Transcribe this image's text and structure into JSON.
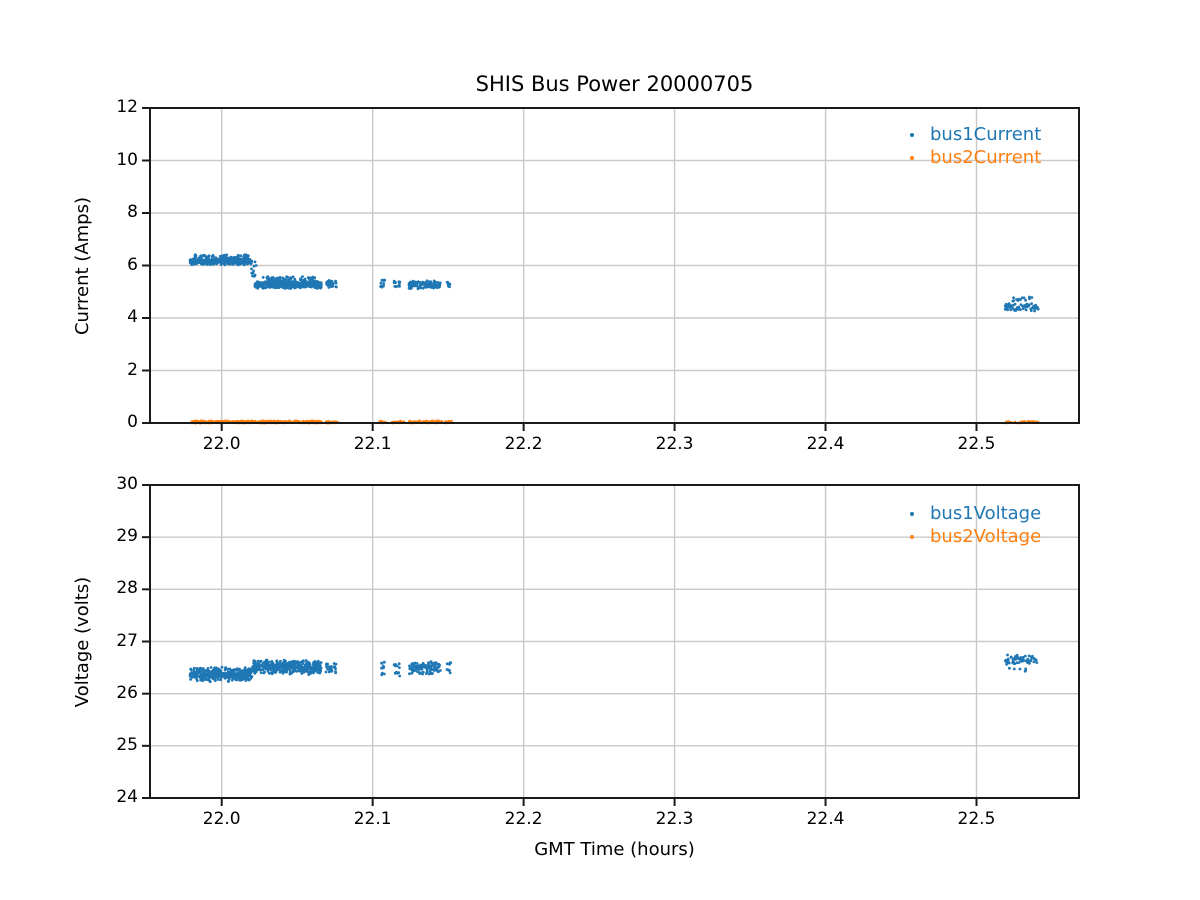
{
  "figure": {
    "background": "#ffffff"
  },
  "chart_data": [
    {
      "type": "scatter",
      "title": "SHIS Bus Power 20000705",
      "ylabel": "Current (Amps)",
      "xlabel": "",
      "xlim": [
        21.9525,
        22.5679
      ],
      "ylim": [
        0,
        12
      ],
      "xticks": [
        22.0,
        22.1,
        22.2,
        22.3,
        22.4,
        22.5
      ],
      "xticklabels": [
        "22.0",
        "22.1",
        "22.2",
        "22.3",
        "22.4",
        "22.5"
      ],
      "yticks": [
        0,
        2,
        4,
        6,
        8,
        10,
        12
      ],
      "yticklabels": [
        "0",
        "2",
        "4",
        "6",
        "8",
        "10",
        "12"
      ],
      "grid": true,
      "grid_color": "#c9c9c9",
      "legend": {
        "position": "upper right",
        "frame": false
      },
      "series": [
        {
          "name": "bus1Current",
          "color": "#1f77b4",
          "marker": "dot",
          "segments": [
            {
              "x0": 21.979,
              "x1": 22.02,
              "n": 380,
              "y0": 6.02,
              "y1": 6.28,
              "dist": "tri"
            },
            {
              "x0": 21.981,
              "x1": 22.018,
              "n": 70,
              "y0": 6.22,
              "y1": 6.42,
              "dist": "uniform"
            },
            {
              "x0": 22.019,
              "x1": 22.023,
              "n": 14,
              "y0": 5.45,
              "y1": 6.15,
              "dist": "uniform"
            },
            {
              "x0": 22.022,
              "x1": 22.066,
              "n": 400,
              "y0": 5.12,
              "y1": 5.42,
              "dist": "tri"
            },
            {
              "x0": 22.026,
              "x1": 22.064,
              "n": 70,
              "y0": 5.38,
              "y1": 5.58,
              "dist": "uniform"
            },
            {
              "x0": 22.069,
              "x1": 22.076,
              "n": 28,
              "y0": 5.14,
              "y1": 5.5,
              "dist": "tri"
            },
            {
              "x0": 22.105,
              "x1": 22.108,
              "n": 12,
              "y0": 5.15,
              "y1": 5.45,
              "dist": "uniform"
            },
            {
              "x0": 22.114,
              "x1": 22.118,
              "n": 12,
              "y0": 5.18,
              "y1": 5.45,
              "dist": "uniform"
            },
            {
              "x0": 22.124,
              "x1": 22.145,
              "n": 120,
              "y0": 5.1,
              "y1": 5.45,
              "dist": "tri"
            },
            {
              "x0": 22.149,
              "x1": 22.152,
              "n": 10,
              "y0": 5.18,
              "y1": 5.4,
              "dist": "uniform"
            },
            {
              "x0": 22.519,
              "x1": 22.541,
              "n": 70,
              "y0": 4.25,
              "y1": 4.58,
              "dist": "tri"
            },
            {
              "x0": 22.521,
              "x1": 22.538,
              "n": 13,
              "y0": 4.55,
              "y1": 4.8,
              "dist": "uniform"
            }
          ]
        },
        {
          "name": "bus2Current",
          "color": "#ff7f0e",
          "marker": "dot",
          "segments": [
            {
              "x0": 21.98,
              "x1": 22.066,
              "n": 320,
              "y0": 0.0,
              "y1": 0.08,
              "dist": "uniform"
            },
            {
              "x0": 22.069,
              "x1": 22.077,
              "n": 22,
              "y0": 0.0,
              "y1": 0.07,
              "dist": "uniform"
            },
            {
              "x0": 22.104,
              "x1": 22.109,
              "n": 10,
              "y0": 0.0,
              "y1": 0.07,
              "dist": "uniform"
            },
            {
              "x0": 22.112,
              "x1": 22.121,
              "n": 16,
              "y0": 0.0,
              "y1": 0.07,
              "dist": "uniform"
            },
            {
              "x0": 22.124,
              "x1": 22.146,
              "n": 70,
              "y0": 0.0,
              "y1": 0.08,
              "dist": "uniform"
            },
            {
              "x0": 22.148,
              "x1": 22.153,
              "n": 10,
              "y0": 0.0,
              "y1": 0.07,
              "dist": "uniform"
            },
            {
              "x0": 22.519,
              "x1": 22.541,
              "n": 30,
              "y0": 0.0,
              "y1": 0.07,
              "dist": "uniform"
            }
          ]
        }
      ]
    },
    {
      "type": "scatter",
      "title": "",
      "ylabel": "Voltage (volts)",
      "xlabel": "GMT Time (hours)",
      "xlim": [
        21.9525,
        22.5679
      ],
      "ylim": [
        24,
        30
      ],
      "xticks": [
        22.0,
        22.1,
        22.2,
        22.3,
        22.4,
        22.5
      ],
      "xticklabels": [
        "22.0",
        "22.1",
        "22.2",
        "22.3",
        "22.4",
        "22.5"
      ],
      "yticks": [
        24,
        25,
        26,
        27,
        28,
        29,
        30
      ],
      "yticklabels": [
        "24",
        "25",
        "26",
        "27",
        "28",
        "29",
        "30"
      ],
      "grid": true,
      "grid_color": "#c9c9c9",
      "legend": {
        "position": "upper right",
        "frame": false
      },
      "series": [
        {
          "name": "bus1Voltage",
          "color": "#1f77b4",
          "marker": "dot",
          "segments": [
            {
              "x0": 21.979,
              "x1": 22.02,
              "n": 380,
              "y0": 26.22,
              "y1": 26.52,
              "dist": "tri"
            },
            {
              "x0": 22.02,
              "x1": 22.066,
              "n": 400,
              "y0": 26.36,
              "y1": 26.66,
              "dist": "tri"
            },
            {
              "x0": 22.069,
              "x1": 22.076,
              "n": 26,
              "y0": 26.38,
              "y1": 26.6,
              "dist": "tri"
            },
            {
              "x0": 22.105,
              "x1": 22.108,
              "n": 11,
              "y0": 26.3,
              "y1": 26.62,
              "dist": "uniform"
            },
            {
              "x0": 22.114,
              "x1": 22.118,
              "n": 11,
              "y0": 26.3,
              "y1": 26.6,
              "dist": "uniform"
            },
            {
              "x0": 22.124,
              "x1": 22.145,
              "n": 120,
              "y0": 26.34,
              "y1": 26.64,
              "dist": "tri"
            },
            {
              "x0": 22.149,
              "x1": 22.152,
              "n": 9,
              "y0": 26.35,
              "y1": 26.6,
              "dist": "uniform"
            },
            {
              "x0": 22.519,
              "x1": 22.54,
              "n": 60,
              "y0": 26.5,
              "y1": 26.76,
              "dist": "tri"
            },
            {
              "x0": 22.521,
              "x1": 22.533,
              "n": 6,
              "y0": 26.42,
              "y1": 26.52,
              "dist": "uniform"
            }
          ]
        },
        {
          "name": "bus2Voltage",
          "color": "#ff7f0e",
          "marker": "dot",
          "segments": []
        }
      ]
    }
  ]
}
